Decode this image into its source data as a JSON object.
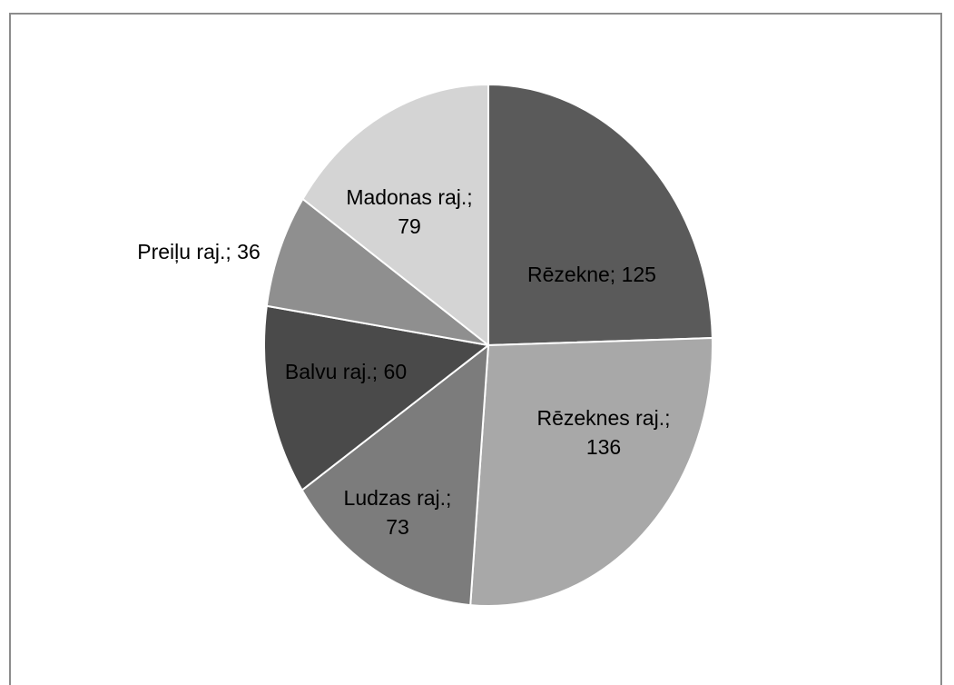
{
  "chart_data": {
    "type": "pie",
    "slices": [
      {
        "label": "Rēzekne",
        "value": 125,
        "color": "#5a5a5a",
        "label_lines": [
          "Rēzekne; 125"
        ]
      },
      {
        "label": "Rēzeknes raj.",
        "value": 136,
        "color": "#a8a8a8",
        "label_lines": [
          "Rēzeknes raj.;",
          "136"
        ]
      },
      {
        "label": "Ludzas raj.",
        "value": 73,
        "color": "#7c7c7c",
        "label_lines": [
          "Ludzas raj.;",
          "73"
        ]
      },
      {
        "label": "Balvu raj.",
        "value": 60,
        "color": "#4a4a4a",
        "label_lines": [
          "Balvu raj.; 60"
        ]
      },
      {
        "label": "Preiļu raj.",
        "value": 36,
        "color": "#8f8f8f",
        "label_lines": [
          "Preiļu raj.; 36"
        ]
      },
      {
        "label": "Madonas raj.",
        "value": 79,
        "color": "#d4d4d4",
        "label_lines": [
          "Madonas raj.;",
          "79"
        ]
      }
    ],
    "start_angle": "12 o'clock",
    "direction": "clockwise",
    "legend": "none",
    "label_position": "on-slice"
  }
}
